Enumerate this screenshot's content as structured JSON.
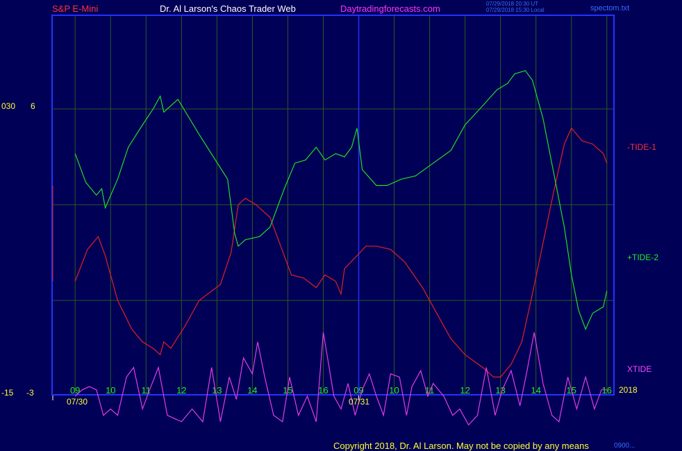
{
  "header": {
    "instrument": "S&P E-Mini",
    "site": "Dr. Al Larson's Chaos Trader Web",
    "url": "Daytradingforecasts.com",
    "timestamp_ut": "07/29/2018 20:30 UT",
    "timestamp_local": "07/29/2018 15:30 Local",
    "file": "spectom.txt"
  },
  "left_scale": {
    "top_label": "030",
    "top_value": "6",
    "bottom_label": "-15",
    "bottom_value": "-3"
  },
  "series_labels": {
    "tide1": "-TIDE-1",
    "tide2": "+TIDE-2",
    "xtide": "XTIDE"
  },
  "year_label": "2018",
  "footer": {
    "copyright": "Copyright 2018, Dr. Al Larson. May not be copied by any means",
    "right_mark": "0900..."
  },
  "colors": {
    "background": "#000057",
    "axis": "#2233ff",
    "grid": "#2d5a1e",
    "tide1": "#e32020",
    "tide2": "#22dd22",
    "xtide": "#e43ce4",
    "text_yellow": "#ffff33"
  },
  "chart_data": {
    "type": "line",
    "x_unit": "hour",
    "dates": [
      "07/30",
      "07/31"
    ],
    "hour_ticks": [
      {
        "day": "07/30",
        "labels": [
          "09",
          "10",
          "11",
          "12",
          "13",
          "14",
          "15",
          "16"
        ]
      },
      {
        "day": "07/31",
        "labels": [
          "09",
          "10",
          "11",
          "12",
          "13",
          "14",
          "15",
          "16"
        ]
      }
    ],
    "y_labels": [
      "6",
      "-3"
    ],
    "series": [
      {
        "name": "-TIDE-1",
        "points": [
          [
            9.0,
            0.6
          ],
          [
            9.35,
            1.6
          ],
          [
            9.65,
            2.0
          ],
          [
            9.85,
            1.4
          ],
          [
            10.2,
            0.0
          ],
          [
            10.6,
            -0.9
          ],
          [
            10.9,
            -1.3
          ],
          [
            11.2,
            -1.5
          ],
          [
            11.4,
            -1.7
          ],
          [
            11.5,
            -1.3
          ],
          [
            11.7,
            -1.5
          ],
          [
            12.1,
            -0.8
          ],
          [
            12.5,
            0.0
          ],
          [
            13.1,
            0.5
          ],
          [
            13.4,
            1.5
          ],
          [
            13.6,
            3.0
          ],
          [
            13.8,
            3.2
          ],
          [
            14.1,
            3.0
          ],
          [
            14.5,
            2.6
          ],
          [
            14.8,
            1.7
          ],
          [
            15.1,
            0.8
          ],
          [
            15.45,
            0.7
          ],
          [
            15.8,
            0.4
          ],
          [
            16.05,
            0.8
          ],
          [
            16.35,
            0.6
          ],
          [
            16.5,
            0.2
          ],
          [
            16.6,
            1.0
          ],
          [
            16.95,
            1.4
          ],
          [
            17.2,
            1.7
          ],
          [
            17.5,
            1.7
          ],
          [
            17.9,
            1.6
          ],
          [
            18.3,
            1.2
          ],
          [
            18.8,
            0.4
          ],
          [
            19.2,
            -0.4
          ],
          [
            19.6,
            -1.2
          ],
          [
            20.0,
            -1.7
          ],
          [
            20.5,
            -2.1
          ],
          [
            20.8,
            -2.4
          ],
          [
            21.0,
            -2.4
          ],
          [
            21.3,
            -2.0
          ],
          [
            21.6,
            -1.3
          ],
          [
            21.9,
            0.2
          ],
          [
            22.2,
            1.8
          ],
          [
            22.5,
            3.4
          ],
          [
            22.8,
            4.9
          ],
          [
            23.0,
            5.4
          ],
          [
            23.3,
            5.0
          ],
          [
            23.6,
            4.9
          ],
          [
            23.9,
            4.6
          ],
          [
            24.0,
            4.3
          ]
        ]
      },
      {
        "name": "+TIDE-2",
        "points": [
          [
            9.0,
            4.6
          ],
          [
            9.3,
            3.7
          ],
          [
            9.6,
            3.3
          ],
          [
            9.75,
            3.5
          ],
          [
            9.85,
            2.9
          ],
          [
            10.2,
            3.8
          ],
          [
            10.5,
            4.8
          ],
          [
            10.9,
            5.5
          ],
          [
            11.2,
            6.0
          ],
          [
            11.4,
            6.4
          ],
          [
            11.5,
            5.9
          ],
          [
            11.9,
            6.3
          ],
          [
            12.5,
            5.2
          ],
          [
            12.9,
            4.5
          ],
          [
            13.3,
            3.8
          ],
          [
            13.5,
            2.1
          ],
          [
            13.6,
            1.7
          ],
          [
            13.8,
            1.9
          ],
          [
            14.2,
            2.0
          ],
          [
            14.5,
            2.3
          ],
          [
            14.9,
            3.5
          ],
          [
            15.2,
            4.3
          ],
          [
            15.5,
            4.4
          ],
          [
            15.8,
            4.8
          ],
          [
            16.05,
            4.4
          ],
          [
            16.35,
            4.6
          ],
          [
            16.6,
            4.5
          ],
          [
            16.8,
            4.8
          ],
          [
            16.95,
            5.4
          ],
          [
            17.1,
            4.1
          ],
          [
            17.5,
            3.6
          ],
          [
            17.8,
            3.6
          ],
          [
            18.2,
            3.8
          ],
          [
            18.6,
            3.9
          ],
          [
            19.1,
            4.3
          ],
          [
            19.6,
            4.7
          ],
          [
            20.0,
            5.5
          ],
          [
            20.5,
            6.1
          ],
          [
            20.9,
            6.6
          ],
          [
            21.2,
            6.8
          ],
          [
            21.4,
            7.1
          ],
          [
            21.7,
            7.2
          ],
          [
            21.9,
            6.9
          ],
          [
            22.2,
            5.7
          ],
          [
            22.5,
            4.0
          ],
          [
            22.8,
            2.3
          ],
          [
            23.0,
            0.8
          ],
          [
            23.2,
            -0.3
          ],
          [
            23.4,
            -0.9
          ],
          [
            23.6,
            -0.4
          ],
          [
            23.9,
            -0.2
          ],
          [
            24.0,
            0.3
          ]
        ]
      },
      {
        "name": "XTIDE",
        "points": [
          [
            9.0,
            -3.0
          ],
          [
            9.2,
            -2.8
          ],
          [
            9.4,
            -2.7
          ],
          [
            9.6,
            -2.8
          ],
          [
            9.8,
            -3.6
          ],
          [
            10.0,
            -3.4
          ],
          [
            10.2,
            -3.6
          ],
          [
            10.45,
            -2.4
          ],
          [
            10.65,
            -2.1
          ],
          [
            10.9,
            -3.4
          ],
          [
            11.1,
            -2.8
          ],
          [
            11.35,
            -2.1
          ],
          [
            11.6,
            -3.6
          ],
          [
            12.0,
            -3.8
          ],
          [
            12.3,
            -3.4
          ],
          [
            12.6,
            -3.8
          ],
          [
            12.85,
            -2.1
          ],
          [
            13.1,
            -3.8
          ],
          [
            13.35,
            -2.4
          ],
          [
            13.55,
            -3.1
          ],
          [
            13.75,
            -1.8
          ],
          [
            14.0,
            -2.3
          ],
          [
            14.15,
            -1.3
          ],
          [
            14.35,
            -2.4
          ],
          [
            14.6,
            -3.6
          ],
          [
            14.85,
            -3.8
          ],
          [
            15.05,
            -2.4
          ],
          [
            15.3,
            -3.6
          ],
          [
            15.55,
            -3.0
          ],
          [
            15.8,
            -3.8
          ],
          [
            16.0,
            -1.0
          ],
          [
            16.3,
            -3.0
          ],
          [
            16.5,
            -3.4
          ],
          [
            16.7,
            -2.6
          ],
          [
            16.9,
            -3.6
          ],
          [
            17.1,
            -2.8
          ],
          [
            17.3,
            -2.3
          ],
          [
            17.5,
            -3.0
          ],
          [
            17.7,
            -3.6
          ],
          [
            17.9,
            -2.3
          ],
          [
            18.15,
            -2.4
          ],
          [
            18.35,
            -3.6
          ],
          [
            18.5,
            -2.7
          ],
          [
            18.75,
            -2.2
          ],
          [
            18.95,
            -3.0
          ],
          [
            19.1,
            -2.6
          ],
          [
            19.4,
            -3.0
          ],
          [
            19.65,
            -3.6
          ],
          [
            19.85,
            -3.4
          ],
          [
            20.1,
            -3.9
          ],
          [
            20.35,
            -3.6
          ],
          [
            20.6,
            -2.1
          ],
          [
            20.85,
            -3.6
          ],
          [
            21.05,
            -2.8
          ],
          [
            21.3,
            -2.2
          ],
          [
            21.55,
            -3.3
          ],
          [
            21.75,
            -2.2
          ],
          [
            21.95,
            -1.0
          ],
          [
            22.2,
            -2.6
          ],
          [
            22.45,
            -3.6
          ],
          [
            22.65,
            -3.8
          ],
          [
            22.9,
            -2.4
          ],
          [
            23.15,
            -3.4
          ],
          [
            23.4,
            -2.4
          ],
          [
            23.65,
            -3.4
          ],
          [
            23.85,
            -2.8
          ],
          [
            24.0,
            -2.8
          ]
        ]
      }
    ]
  }
}
